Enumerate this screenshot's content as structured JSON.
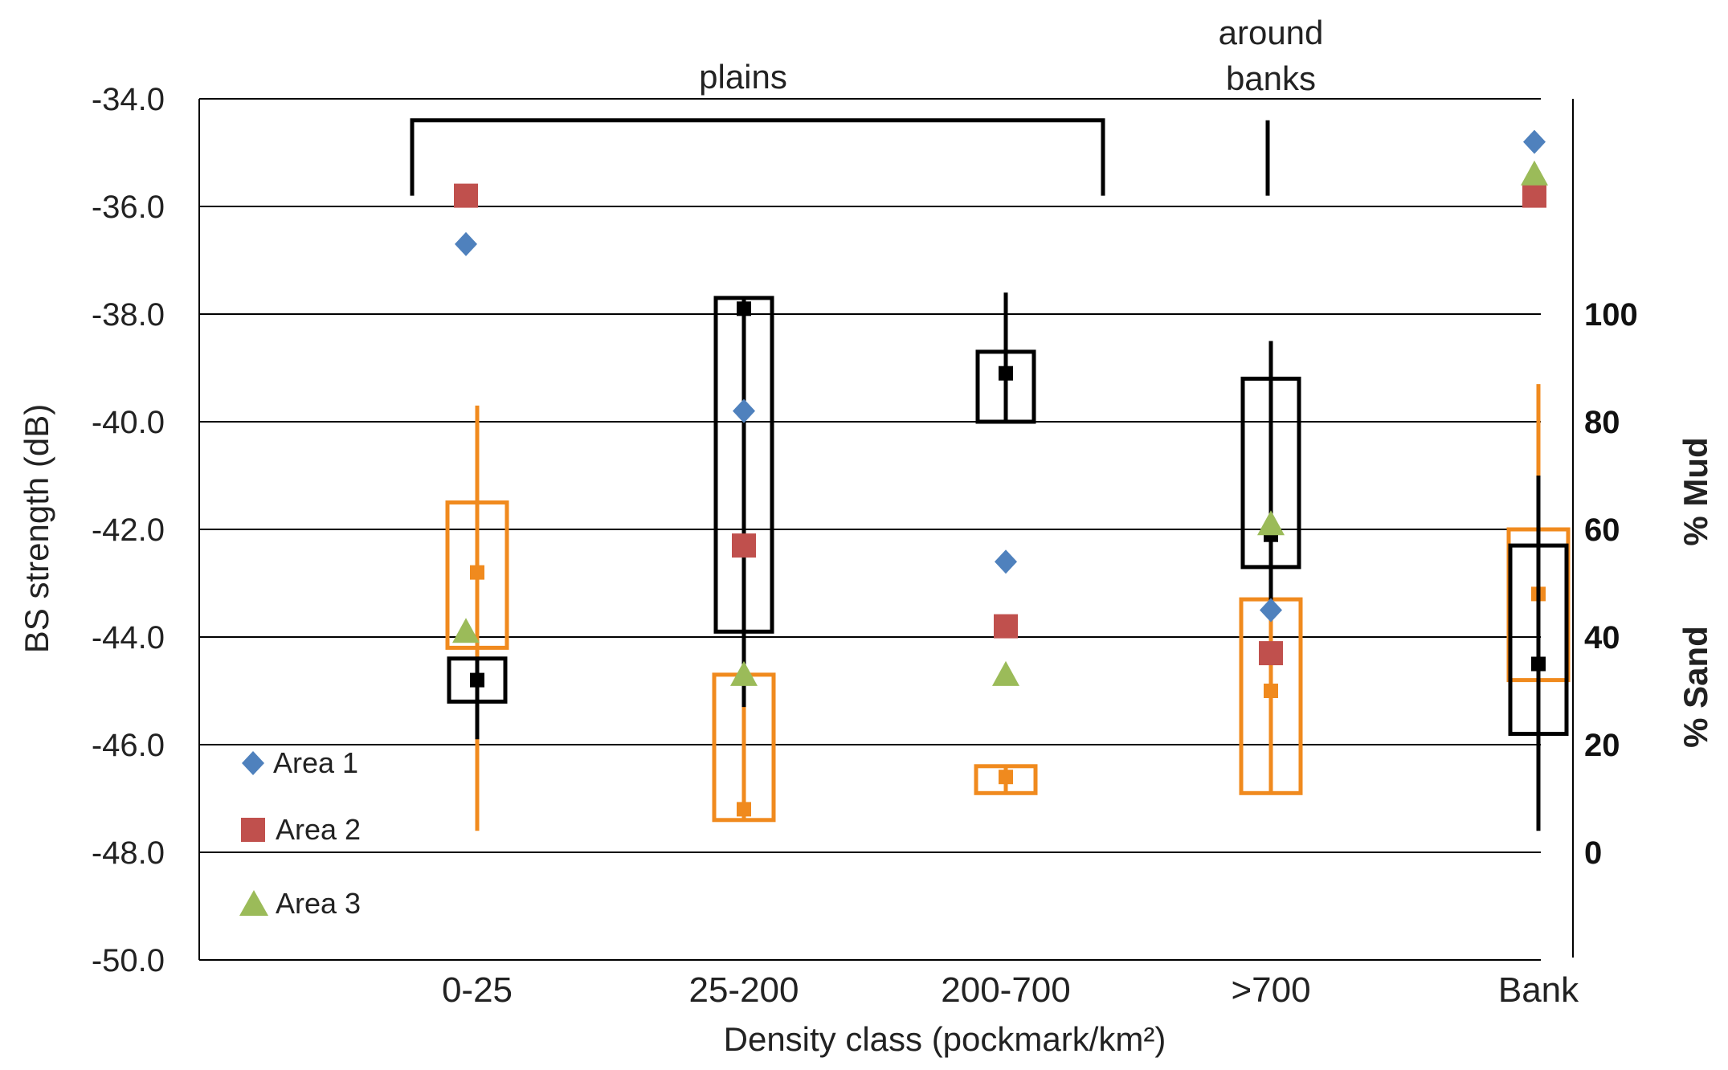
{
  "chart_data": {
    "type": "scatter",
    "categories": [
      "0-25",
      "25-200",
      "200-700",
      ">700",
      "Bank"
    ],
    "xlabel": "Density class (pockmark/km²)",
    "ylabel": "BS strength (dB)",
    "ylim": [
      -50,
      -34
    ],
    "yticks": [
      "-34.0",
      "-36.0",
      "-38.0",
      "-40.0",
      "-42.0",
      "-44.0",
      "-46.0",
      "-48.0",
      "-50.0"
    ],
    "y2label_mud": "% Mud",
    "y2label_sand": "% Sand",
    "y2_ticks": [
      "100",
      "80",
      "60",
      "40",
      "20",
      "0"
    ],
    "grid": true,
    "legend_position": "bottom-left",
    "annotations": {
      "plains": "plains",
      "around_banks": [
        "around",
        "banks"
      ]
    },
    "series": [
      {
        "name": "Area 1",
        "marker": "diamond",
        "color": "#4F81BD",
        "values": [
          -36.7,
          -39.8,
          -42.6,
          -43.5,
          -34.8
        ]
      },
      {
        "name": "Area 2",
        "marker": "square",
        "color": "#C0504D",
        "values": [
          -35.8,
          -42.3,
          -43.8,
          -44.3,
          -35.8
        ]
      },
      {
        "name": "Area 3",
        "marker": "triangle",
        "color": "#9BBB59",
        "values": [
          -43.9,
          -44.7,
          -44.7,
          -41.9,
          -35.4
        ]
      }
    ],
    "mud_boxes": {
      "name": "% Mud",
      "color": "#000000",
      "items": [
        {
          "category": "0-25",
          "median": -44.8,
          "box_top": -44.4,
          "box_bottom": -45.2,
          "whisker_top": -44.4,
          "whisker_bottom": -45.9
        },
        {
          "category": "25-200",
          "median": -37.9,
          "box_top": -37.7,
          "box_bottom": -43.9,
          "whisker_top": -37.7,
          "whisker_bottom": -45.3
        },
        {
          "category": "200-700",
          "median": -39.1,
          "box_top": -38.7,
          "box_bottom": -40.0,
          "whisker_top": -37.6,
          "whisker_bottom": -40.0
        },
        {
          "category": ">700",
          "median": -42.1,
          "box_top": -39.2,
          "box_bottom": -42.7,
          "whisker_top": -38.5,
          "whisker_bottom": -43.4
        },
        {
          "category": "Bank",
          "median": -44.5,
          "box_top": -42.3,
          "box_bottom": -45.8,
          "whisker_top": -41.0,
          "whisker_bottom": -47.6
        }
      ]
    },
    "sand_boxes": {
      "name": "% Sand",
      "color": "#F08A1E",
      "items": [
        {
          "category": "0-25",
          "median": -42.8,
          "box_top": -41.5,
          "box_bottom": -44.2,
          "whisker_top": -39.7,
          "whisker_bottom": -47.6
        },
        {
          "category": "25-200",
          "median": -47.2,
          "box_top": -44.7,
          "box_bottom": -47.4,
          "whisker_top": -43.3,
          "whisker_bottom": -47.4
        },
        {
          "category": "200-700",
          "median": -46.6,
          "box_top": -46.4,
          "box_bottom": -46.9,
          "whisker_top": -46.4,
          "whisker_bottom": -46.9
        },
        {
          "category": ">700",
          "median": -45.0,
          "box_top": -43.3,
          "box_bottom": -46.9,
          "whisker_top": -42.7,
          "whisker_bottom": -46.9
        },
        {
          "category": "Bank",
          "median": -43.2,
          "box_top": -42.0,
          "box_bottom": -44.8,
          "whisker_top": -39.3,
          "whisker_bottom": -45.6
        }
      ]
    }
  }
}
